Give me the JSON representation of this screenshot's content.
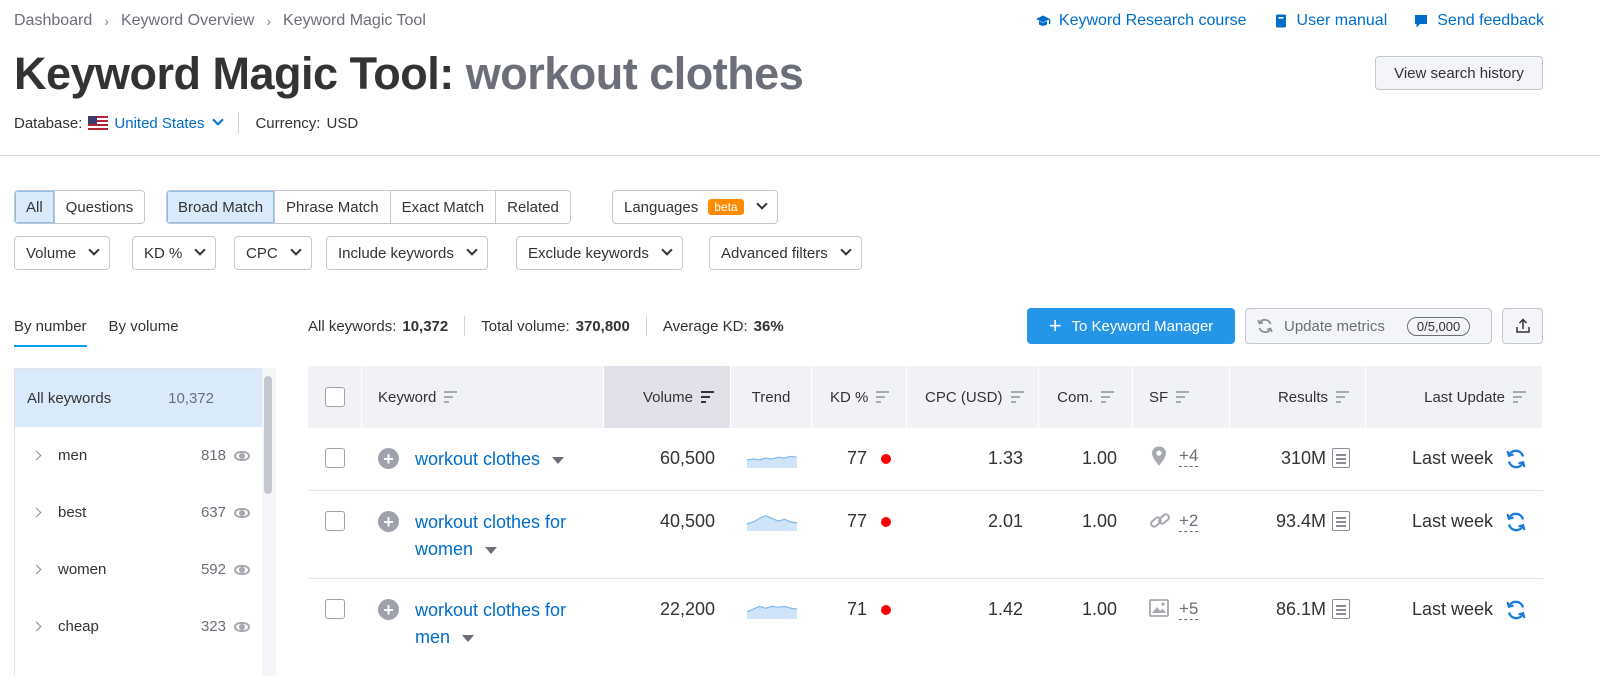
{
  "breadcrumb": [
    "Dashboard",
    "Keyword Overview",
    "Keyword Magic Tool"
  ],
  "top_links": [
    {
      "label": "Keyword Research course",
      "icon": "graduation-cap-icon"
    },
    {
      "label": "User manual",
      "icon": "book-icon"
    },
    {
      "label": "Send feedback",
      "icon": "chat-bubble-icon"
    }
  ],
  "title": {
    "prefix": "Keyword Magic Tool:",
    "query": "workout clothes"
  },
  "history_button": "View search history",
  "database": {
    "label": "Database:",
    "value": "United States",
    "currency_label": "Currency:",
    "currency_value": "USD"
  },
  "match_tabs": {
    "type": [
      "All",
      "Questions"
    ],
    "match": [
      "Broad Match",
      "Phrase Match",
      "Exact Match",
      "Related"
    ],
    "languages": "Languages",
    "beta": "beta"
  },
  "filters": [
    "Volume",
    "KD %",
    "CPC",
    "Include keywords",
    "Exclude keywords",
    "Advanced filters"
  ],
  "group_tabs": [
    "By number",
    "By volume"
  ],
  "sidebar": {
    "all": {
      "label": "All keywords",
      "count": "10,372"
    },
    "groups": [
      {
        "label": "men",
        "count": "818"
      },
      {
        "label": "best",
        "count": "637"
      },
      {
        "label": "women",
        "count": "592"
      },
      {
        "label": "cheap",
        "count": "323"
      }
    ]
  },
  "stats": {
    "all_label": "All keywords:",
    "all_value": "10,372",
    "volume_label": "Total volume:",
    "volume_value": "370,800",
    "kd_label": "Average KD:",
    "kd_value": "36%"
  },
  "actions": {
    "keyword_manager": "To Keyword Manager",
    "update_metrics": "Update metrics",
    "update_count": "0/5,000"
  },
  "columns": [
    "Keyword",
    "Volume",
    "Trend",
    "KD %",
    "CPC (USD)",
    "Com.",
    "SF",
    "Results",
    "Last Update"
  ],
  "rows": [
    {
      "keyword_line1": "workout clothes",
      "keyword_line2": "",
      "volume": "60,500",
      "kd": "77",
      "cpc": "1.33",
      "com": "1.00",
      "sf_icon": "location-pin-icon",
      "sf_more": "+4",
      "results": "310M",
      "updated": "Last week",
      "trend": [
        0.55,
        0.5,
        0.55,
        0.45,
        0.5,
        0.4,
        0.45,
        0.35,
        0.4
      ]
    },
    {
      "keyword_line1": "workout clothes for",
      "keyword_line2": "women",
      "volume": "40,500",
      "kd": "77",
      "cpc": "2.01",
      "com": "1.00",
      "sf_icon": "link-icon",
      "sf_more": "+2",
      "results": "93.4M",
      "updated": "Last week",
      "trend": [
        0.6,
        0.5,
        0.3,
        0.15,
        0.3,
        0.45,
        0.35,
        0.5,
        0.55
      ]
    },
    {
      "keyword_line1": "workout clothes for",
      "keyword_line2": "men",
      "volume": "22,200",
      "kd": "71",
      "cpc": "1.42",
      "com": "1.00",
      "sf_icon": "image-icon",
      "sf_more": "+5",
      "results": "86.1M",
      "updated": "Last week",
      "trend": [
        0.6,
        0.45,
        0.3,
        0.4,
        0.3,
        0.35,
        0.3,
        0.4,
        0.45
      ]
    }
  ]
}
